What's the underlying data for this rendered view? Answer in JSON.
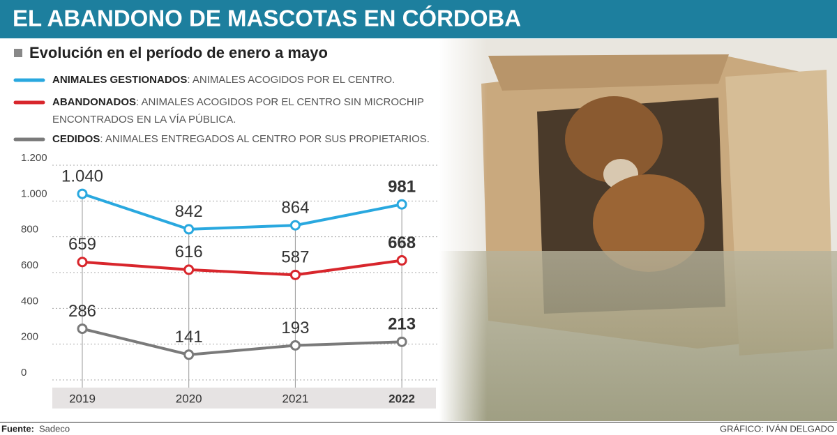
{
  "chart_data": {
    "type": "line",
    "title": "EL ABANDONO DE MASCOTAS EN CÓRDOBA",
    "subtitle": "Evolución en el período de enero a mayo",
    "categories": [
      "2019",
      "2020",
      "2021",
      "2022"
    ],
    "series": [
      {
        "name": "ANIMALES GESTIONADOS",
        "description": [
          ": ANIMALES ACOGIDOS POR EL CENTRO."
        ],
        "color": "#29a8df",
        "values": [
          1040,
          842,
          864,
          981
        ],
        "value_labels": [
          "1.040",
          "842",
          "864",
          "981"
        ]
      },
      {
        "name": "ABANDONADOS",
        "description": [
          ": ANIMALES ACOGIDOS POR EL CENTRO SIN MICROCHIP",
          "ENCONTRADOS EN LA VÍA PÚBLICA."
        ],
        "color": "#d8262c",
        "values": [
          659,
          616,
          587,
          668
        ]
      },
      {
        "name": "CEDIDOS",
        "description": [
          ": ANIMALES ENTREGADOS AL CENTRO POR SUS PROPIETARIOS."
        ],
        "color": "#7a7a7a",
        "values": [
          286,
          141,
          193,
          213
        ]
      }
    ],
    "ylim": [
      0,
      1200
    ],
    "yticks": [
      0,
      200,
      400,
      600,
      800,
      {
        "value": 1000,
        "label": "1.000"
      },
      {
        "value": 1200,
        "label": "1.200"
      }
    ],
    "grid": true,
    "source_label": "Fuente:",
    "source": "Sadeco",
    "credit": "GRÁFICO: IVÁN DELGADO"
  }
}
